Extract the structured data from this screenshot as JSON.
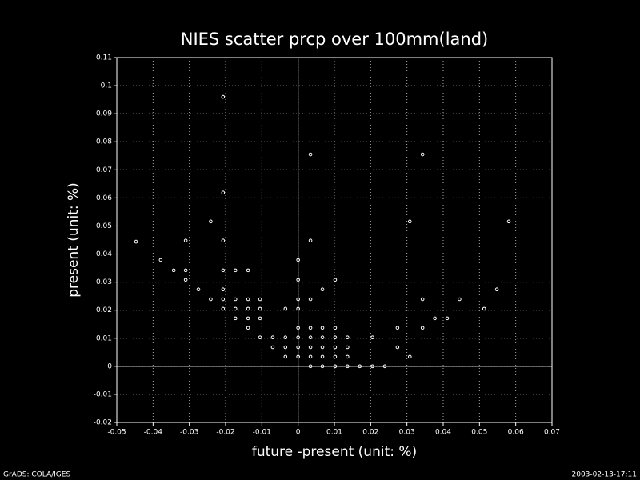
{
  "chart_data": {
    "type": "scatter",
    "title": "NIES scatter prcp over 100mm(land)",
    "x_label": "future -present (unit: %)",
    "y_label": "present (unit: %)",
    "footer_left": "GrADS: COLA/IGES",
    "footer_right": "2003-02-13-17:11",
    "x": [
      -0.0447,
      -0.0379,
      -0.0343,
      -0.031,
      -0.031,
      -0.031,
      -0.0275,
      -0.0241,
      -0.0241,
      -0.0207,
      -0.0207,
      -0.0207,
      -0.0207,
      -0.0207,
      -0.0207,
      -0.0207,
      -0.0173,
      -0.0173,
      -0.0173,
      -0.0173,
      -0.0138,
      -0.0138,
      -0.0138,
      -0.0138,
      -0.0138,
      -0.0105,
      -0.0105,
      -0.0105,
      -0.0105,
      -0.007,
      -0.007,
      -0.0035,
      -0.0035,
      -0.0035,
      -0.0035,
      0,
      0,
      0,
      0,
      0,
      0,
      0,
      0,
      0.0034,
      0.0034,
      0.0034,
      0.0034,
      0.0034,
      0.0034,
      0.0034,
      0.0034,
      0.0067,
      0.0067,
      0.0067,
      0.0067,
      0.0067,
      0.0067,
      0.0102,
      0.0102,
      0.0102,
      0.0102,
      0.0102,
      0.0102,
      0.0136,
      0.0136,
      0.0136,
      0.0136,
      0.017,
      0.0205,
      0.0205,
      0.0239,
      0.0274,
      0.0274,
      0.0308,
      0.0308,
      0.0343,
      0.0343,
      0.0343,
      0.0377,
      0.0411,
      0.0445,
      0.0513,
      0.0548,
      0.0581
    ],
    "y": [
      0.0444,
      0.0379,
      0.0342,
      0.0342,
      0.0448,
      0.0308,
      0.0274,
      0.0239,
      0.0516,
      0.096,
      0.0619,
      0.0448,
      0.0342,
      0.0274,
      0.0239,
      0.0205,
      0.0342,
      0.0239,
      0.0205,
      0.0171,
      0.0342,
      0.0239,
      0.0205,
      0.0171,
      0.0137,
      0.0239,
      0.0205,
      0.0171,
      0.0103,
      0.0068,
      0.0103,
      0.0205,
      0.0103,
      0.0068,
      0.0034,
      0.0379,
      0.0308,
      0.0239,
      0.0205,
      0.0137,
      0.0103,
      0.0068,
      0.0034,
      0.0755,
      0.0448,
      0.0239,
      0.0137,
      0.0103,
      0.0068,
      0.0034,
      0,
      0.0274,
      0.0137,
      0.0103,
      0.0068,
      0.0034,
      0,
      0.0308,
      0.0137,
      0.0103,
      0.0068,
      0.0034,
      0,
      0.0103,
      0.0068,
      0.0034,
      0,
      0,
      0.0103,
      0,
      0,
      0.0137,
      0.0068,
      0.0034,
      0.0516,
      0.0755,
      0.0239,
      0.0137,
      0.0171,
      0.0171,
      0.0239,
      0.0205,
      0.0274,
      0.0516
    ],
    "color": "#ffffff",
    "xlim": [
      -0.05,
      0.07
    ],
    "xticks": [
      -0.05,
      -0.04,
      -0.03,
      -0.02,
      -0.01,
      0,
      0.01,
      0.02,
      0.03,
      0.04,
      0.05,
      0.06,
      0.07
    ],
    "ylim": [
      -0.02,
      0.11
    ],
    "yticks": [
      -0.02,
      -0.01,
      0,
      0.01,
      0.02,
      0.03,
      0.04,
      0.05,
      0.06,
      0.07,
      0.08,
      0.09,
      0.1,
      0.11
    ],
    "grid": true,
    "zero_lines": true
  }
}
